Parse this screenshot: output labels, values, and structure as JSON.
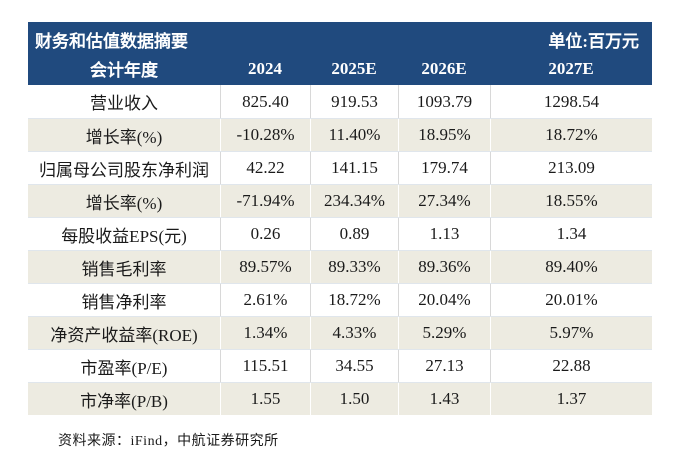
{
  "table": {
    "title": "财务和估值数据摘要",
    "unit_label": "单位:百万元",
    "header_col": "会计年度",
    "year_columns": [
      "2024",
      "2025E",
      "2026E",
      "2027E"
    ],
    "rows": [
      {
        "label": "营业收入",
        "values": [
          "825.40",
          "919.53",
          "1093.79",
          "1298.54"
        ]
      },
      {
        "label": "增长率(%)",
        "values": [
          "-10.28%",
          "11.40%",
          "18.95%",
          "18.72%"
        ]
      },
      {
        "label": "归属母公司股东净利润",
        "values": [
          "42.22",
          "141.15",
          "179.74",
          "213.09"
        ]
      },
      {
        "label": "增长率(%)",
        "values": [
          "-71.94%",
          "234.34%",
          "27.34%",
          "18.55%"
        ]
      },
      {
        "label": "每股收益EPS(元)",
        "values": [
          "0.26",
          "0.89",
          "1.13",
          "1.34"
        ]
      },
      {
        "label": "销售毛利率",
        "values": [
          "89.57%",
          "89.33%",
          "89.36%",
          "89.40%"
        ]
      },
      {
        "label": "销售净利率",
        "values": [
          "2.61%",
          "18.72%",
          "20.04%",
          "20.01%"
        ]
      },
      {
        "label": "净资产收益率(ROE)",
        "values": [
          "1.34%",
          "4.33%",
          "5.29%",
          "5.97%"
        ]
      },
      {
        "label": "市盈率(P/E)",
        "values": [
          "115.51",
          "34.55",
          "27.13",
          "22.88"
        ]
      },
      {
        "label": "市净率(P/B)",
        "values": [
          "1.55",
          "1.50",
          "1.43",
          "1.37"
        ]
      }
    ],
    "source_note": "资料来源：iFind，中航证券研究所"
  },
  "colors": {
    "page_bg": "#ffffff",
    "header_bg": "#204a7e",
    "header_text": "#ffffff",
    "row_bg": "#ffffff",
    "row_alt_bg": "#edebe1",
    "grid_line": "#d8d8d8",
    "row_separator": "#e0e6ec",
    "text": "#1a1a1a"
  }
}
